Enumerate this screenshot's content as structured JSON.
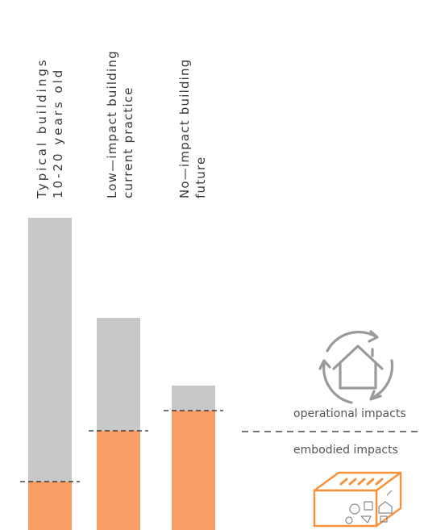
{
  "chart_data": {
    "type": "bar",
    "stacked": true,
    "categories": [
      {
        "line1": "Typical buildings",
        "line2": "10-20 years old"
      },
      {
        "line1": "Low—impact building",
        "line2": "current practice"
      },
      {
        "line1": "No—impact building",
        "line2": "future"
      }
    ],
    "series": [
      {
        "key": "embodied",
        "values": [
          60,
          123,
          148
        ],
        "color": "#f79d65"
      },
      {
        "key": "operational",
        "values": [
          327,
          140,
          31
        ],
        "color": "#c8c8c8"
      }
    ],
    "ylim": [
      0,
      387
    ],
    "axes": "none",
    "grid": false,
    "legend": {
      "operational_label": "operational impacts",
      "embodied_label": "embodied impacts",
      "operational_icon": "house-recycle-icon",
      "embodied_icon": "building-materials-box-icon"
    },
    "colors": {
      "embodied": "#f79d65",
      "operational": "#c8c8c8",
      "divider": "#222222",
      "icon_gray": "#9a9a9a",
      "icon_orange": "#f7923a"
    }
  }
}
